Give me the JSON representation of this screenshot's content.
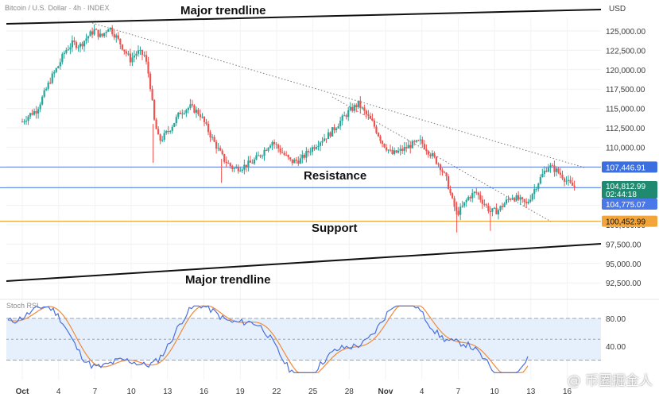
{
  "header": {
    "symbol": "Bitcoin / U.S. Dollar · 4h · INDEX",
    "currency": "USD"
  },
  "annotations": {
    "major_trendline_top": "Major trendline",
    "major_trendline_bottom": "Major trendline",
    "resistance": "Resistance",
    "support": "Support"
  },
  "price_tags": {
    "resistance": "107,446.91",
    "current": "104,812.99",
    "countdown": "02:44:18",
    "current_line": "104,775.07",
    "support": "100,452.99"
  },
  "colors": {
    "up": "#26a69a",
    "down": "#ef5350",
    "resistance_line": "#5b7fe0",
    "current_line": "#4a78e8",
    "support_line": "#f2a53a",
    "stoch_k": "#4a6fe0",
    "stoch_d": "#f08a3a",
    "stoch_band": "#e6f0fc",
    "tag_resistance": "#3b6fe0",
    "tag_current": "#1f8a70",
    "tag_support": "#f2a53a"
  },
  "indicator": {
    "label": "Stoch RSI",
    "levels": [
      "80.00",
      "40.00"
    ]
  },
  "watermark": "@ 币圈掘金人",
  "chart_data": {
    "type": "candlestick",
    "price_axis": {
      "ticks": [
        "125,000.00",
        "122,500.00",
        "120,000.00",
        "117,500.00",
        "115,000.00",
        "112,500.00",
        "110,000.00",
        "107,500.00",
        "105,000.00",
        "102,500.00",
        "100,000.00",
        "97,500.00",
        "95,000.00",
        "92,500.00"
      ],
      "range": [
        91000,
        127500
      ]
    },
    "time_axis": {
      "labels": [
        "Oct",
        "4",
        "7",
        "10",
        "13",
        "16",
        "19",
        "22",
        "25",
        "28",
        "Nov",
        "4",
        "7",
        "10",
        "13",
        "16"
      ]
    },
    "levels": {
      "resistance": 107446.91,
      "current": 104775.07,
      "support": 100452.99
    },
    "trendlines": [
      {
        "name": "Major trendline (top)",
        "points": [
          [
            "Sep 30",
            126200
          ],
          [
            "Nov 18",
            127400
          ]
        ]
      },
      {
        "name": "Major trendline (bottom)",
        "points": [
          [
            "Sep 30",
            91200
          ],
          [
            "Nov 18",
            97200
          ]
        ]
      }
    ],
    "stoch_rsi": {
      "levels": [
        80,
        40
      ]
    },
    "close_path": [
      [
        0,
        113300
      ],
      [
        0.6,
        114200
      ],
      [
        1.2,
        114800
      ],
      [
        1.8,
        116800
      ],
      [
        2.4,
        118900
      ],
      [
        3,
        120500
      ],
      [
        3.6,
        122500
      ],
      [
        4.2,
        123400
      ],
      [
        4.8,
        123100
      ],
      [
        5.4,
        124200
      ],
      [
        6,
        125100
      ],
      [
        6.6,
        124200
      ],
      [
        7.2,
        125600
      ],
      [
        7.8,
        124300
      ],
      [
        8.4,
        122800
      ],
      [
        9,
        121300
      ],
      [
        9.6,
        122300
      ],
      [
        10.2,
        121800
      ],
      [
        10.6,
        118800
      ],
      [
        11,
        113400
      ],
      [
        11.4,
        110800
      ],
      [
        11.8,
        111400
      ],
      [
        12.4,
        112600
      ],
      [
        13.2,
        114600
      ],
      [
        14,
        115200
      ],
      [
        14.8,
        114300
      ],
      [
        15.4,
        112400
      ],
      [
        16,
        110600
      ],
      [
        16.8,
        108400
      ],
      [
        17.6,
        107200
      ],
      [
        18.4,
        107500
      ],
      [
        19.2,
        108100
      ],
      [
        20,
        109300
      ],
      [
        20.8,
        110800
      ],
      [
        21.6,
        109400
      ],
      [
        22.4,
        108100
      ],
      [
        23.2,
        108400
      ],
      [
        24,
        109700
      ],
      [
        24.8,
        110800
      ],
      [
        25.6,
        111700
      ],
      [
        26.4,
        113200
      ],
      [
        27.2,
        114600
      ],
      [
        28,
        115600
      ],
      [
        28.6,
        114300
      ],
      [
        29.2,
        113100
      ],
      [
        30,
        110600
      ],
      [
        30.8,
        109100
      ],
      [
        31.6,
        109600
      ],
      [
        32.4,
        110300
      ],
      [
        33.2,
        110700
      ],
      [
        34,
        109200
      ],
      [
        34.8,
        107600
      ],
      [
        35.4,
        105600
      ],
      [
        35.8,
        103200
      ],
      [
        36.2,
        101400
      ],
      [
        36.6,
        102100
      ],
      [
        37.2,
        103600
      ],
      [
        37.8,
        104200
      ],
      [
        38.4,
        102900
      ],
      [
        39,
        101700
      ],
      [
        39.6,
        101800
      ],
      [
        40.2,
        102800
      ],
      [
        40.8,
        103700
      ],
      [
        41.4,
        103200
      ],
      [
        42,
        102600
      ],
      [
        42.6,
        104400
      ],
      [
        43.2,
        106100
      ],
      [
        43.8,
        107600
      ],
      [
        44.4,
        107100
      ],
      [
        45,
        106300
      ],
      [
        45.6,
        105200
      ],
      [
        46,
        104900
      ]
    ]
  }
}
